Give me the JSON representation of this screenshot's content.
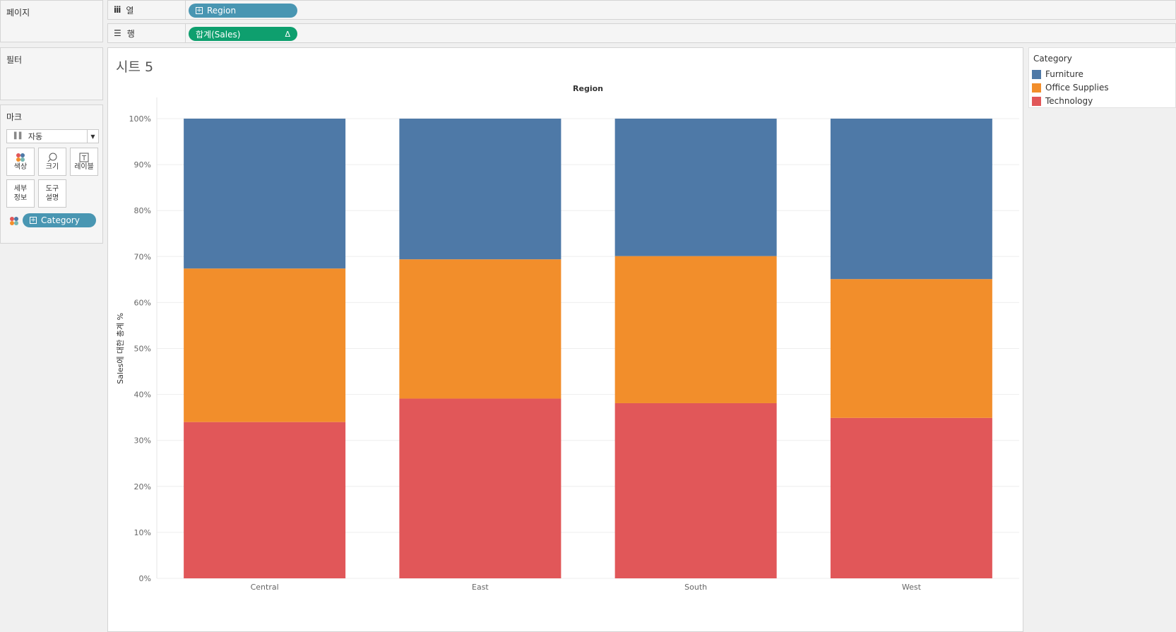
{
  "pages_shelf": {
    "title": "페이지"
  },
  "columns_shelf": {
    "label": "열",
    "icon": "columns-icon",
    "pill": "Region"
  },
  "rows_shelf": {
    "label": "행",
    "icon": "rows-icon",
    "pill": "합계(Sales)",
    "pill_badge": "Δ"
  },
  "filters_shelf": {
    "title": "필터"
  },
  "marks_card": {
    "title": "마크",
    "mark_type": "자동",
    "buttons": [
      {
        "label": "색상",
        "icon": "color-icon"
      },
      {
        "label": "크기",
        "icon": "size-icon"
      },
      {
        "label": "레이블",
        "icon": "label-icon"
      },
      {
        "label": "세부\n정보",
        "icon": "detail-icon"
      },
      {
        "label": "도구\n설명",
        "icon": "tooltip-icon"
      }
    ],
    "color_pill": "Category"
  },
  "sheet": {
    "title": "시트 5"
  },
  "legend": {
    "title": "Category",
    "items": [
      {
        "label": "Furniture",
        "color": "#4e79a7"
      },
      {
        "label": "Office Supplies",
        "color": "#f28e2b"
      },
      {
        "label": "Technology",
        "color": "#e15759"
      }
    ]
  },
  "chart_data": {
    "type": "bar",
    "stacked": true,
    "title": "Region",
    "xlabel": "",
    "ylabel": "Sales에 대한 총계 %",
    "ylim": [
      0,
      100
    ],
    "yticks": [
      "0%",
      "10%",
      "20%",
      "30%",
      "40%",
      "50%",
      "60%",
      "70%",
      "80%",
      "90%",
      "100%"
    ],
    "categories": [
      "Central",
      "East",
      "South",
      "West"
    ],
    "series": [
      {
        "name": "Technology",
        "color": "#e15759",
        "values": [
          34.0,
          39.1,
          38.1,
          34.9
        ]
      },
      {
        "name": "Office Supplies",
        "color": "#f28e2b",
        "values": [
          33.4,
          30.3,
          32.0,
          30.2
        ]
      },
      {
        "name": "Furniture",
        "color": "#4e79a7",
        "values": [
          32.6,
          30.6,
          29.9,
          34.9
        ]
      }
    ],
    "grid": true,
    "legend_position": "right"
  }
}
